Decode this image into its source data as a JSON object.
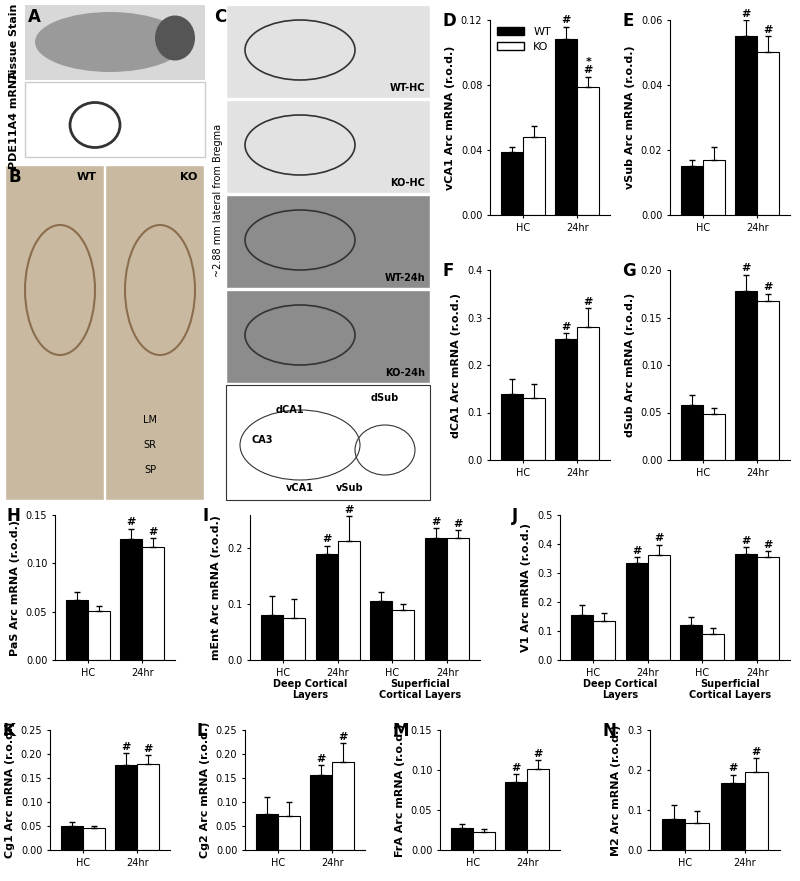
{
  "chart_data": [
    {
      "panel": "D",
      "type": "bar",
      "ylabel": "vCA1 Arc mRNA (r.o.d.)",
      "categories": [
        "HC",
        "24hr"
      ],
      "ylim": [
        0,
        0.12
      ],
      "yticks": [
        {
          "value": 0,
          "label": "0.00"
        },
        {
          "value": 0.04,
          "label": "0.04"
        },
        {
          "value": 0.08,
          "label": "0.08"
        },
        {
          "value": 0.12,
          "label": "0.12"
        }
      ],
      "legend": "upper left",
      "series": [
        {
          "name": "WT",
          "color": "#000000",
          "values": [
            0.039,
            0.108
          ],
          "errors": [
            0.003,
            0.008
          ],
          "marks": [
            null,
            "#"
          ]
        },
        {
          "name": "KO",
          "color": "#ffffff",
          "values": [
            0.048,
            0.079
          ],
          "errors": [
            0.007,
            0.006
          ],
          "marks": [
            null,
            "*\n#"
          ]
        }
      ]
    },
    {
      "panel": "E",
      "type": "bar",
      "ylabel": "vSub Arc mRNA (r.o.d.)",
      "categories": [
        "HC",
        "24hr"
      ],
      "ylim": [
        0,
        0.06
      ],
      "yticks": [
        {
          "value": 0,
          "label": "0.00"
        },
        {
          "value": 0.02,
          "label": "0.02"
        },
        {
          "value": 0.04,
          "label": "0.04"
        },
        {
          "value": 0.06,
          "label": "0.06"
        }
      ],
      "series": [
        {
          "name": "WT",
          "color": "#000000",
          "values": [
            0.015,
            0.055
          ],
          "errors": [
            0.002,
            0.005
          ],
          "marks": [
            null,
            "#"
          ]
        },
        {
          "name": "KO",
          "color": "#ffffff",
          "values": [
            0.017,
            0.05
          ],
          "errors": [
            0.004,
            0.005
          ],
          "marks": [
            null,
            "#"
          ]
        }
      ]
    },
    {
      "panel": "F",
      "type": "bar",
      "ylabel": "dCA1 Arc mRNA (r.o.d.)",
      "categories": [
        "HC",
        "24hr"
      ],
      "ylim": [
        0,
        0.4
      ],
      "yticks": [
        {
          "value": 0,
          "label": "0.0"
        },
        {
          "value": 0.1,
          "label": "0.1"
        },
        {
          "value": 0.2,
          "label": "0.2"
        },
        {
          "value": 0.3,
          "label": "0.3"
        },
        {
          "value": 0.4,
          "label": "0.4"
        }
      ],
      "series": [
        {
          "name": "WT",
          "color": "#000000",
          "values": [
            0.14,
            0.255
          ],
          "errors": [
            0.03,
            0.012
          ],
          "marks": [
            null,
            "#"
          ]
        },
        {
          "name": "KO",
          "color": "#ffffff",
          "values": [
            0.13,
            0.28
          ],
          "errors": [
            0.03,
            0.04
          ],
          "marks": [
            null,
            "#"
          ]
        }
      ]
    },
    {
      "panel": "G",
      "type": "bar",
      "ylabel": "dSub Arc mRNA (r.o.d.)",
      "categories": [
        "HC",
        "24hr"
      ],
      "ylim": [
        0,
        0.2
      ],
      "yticks": [
        {
          "value": 0,
          "label": "0.00"
        },
        {
          "value": 0.05,
          "label": "0.05"
        },
        {
          "value": 0.1,
          "label": "0.10"
        },
        {
          "value": 0.15,
          "label": "0.15"
        },
        {
          "value": 0.2,
          "label": "0.20"
        }
      ],
      "series": [
        {
          "name": "WT",
          "color": "#000000",
          "values": [
            0.058,
            0.178
          ],
          "errors": [
            0.01,
            0.017
          ],
          "marks": [
            null,
            "#"
          ]
        },
        {
          "name": "KO",
          "color": "#ffffff",
          "values": [
            0.048,
            0.167
          ],
          "errors": [
            0.007,
            0.008
          ],
          "marks": [
            null,
            "#"
          ]
        }
      ]
    },
    {
      "panel": "H",
      "type": "bar",
      "ylabel": "PaS Arc mRNA (r.o.d.)",
      "categories": [
        "HC",
        "24hr"
      ],
      "ylim": [
        0,
        0.15
      ],
      "yticks": [
        {
          "value": 0,
          "label": "0.00"
        },
        {
          "value": 0.05,
          "label": "0.05"
        },
        {
          "value": 0.1,
          "label": "0.10"
        },
        {
          "value": 0.15,
          "label": "0.15"
        }
      ],
      "series": [
        {
          "name": "WT",
          "color": "#000000",
          "values": [
            0.062,
            0.125
          ],
          "errors": [
            0.008,
            0.011
          ],
          "marks": [
            null,
            "#"
          ]
        },
        {
          "name": "KO",
          "color": "#ffffff",
          "values": [
            0.051,
            0.117
          ],
          "errors": [
            0.005,
            0.009
          ],
          "marks": [
            null,
            "#"
          ]
        }
      ]
    },
    {
      "panel": "I",
      "type": "bar",
      "ylabel": "mEnt Arc mRNA (r.o.d.)",
      "categories": [
        "HC",
        "24hr",
        "HC",
        "24hr"
      ],
      "group_labels": [
        "Deep Cortical Layers",
        "Superficial Cortical Layers"
      ],
      "ylim": [
        0,
        0.26
      ],
      "yticks": [
        {
          "value": 0,
          "label": "0.0"
        },
        {
          "value": 0.1,
          "label": "0.1"
        },
        {
          "value": 0.2,
          "label": "0.2"
        }
      ],
      "series": [
        {
          "name": "WT",
          "color": "#000000",
          "values": [
            0.08,
            0.19,
            0.105,
            0.218
          ],
          "errors": [
            0.035,
            0.015,
            0.017,
            0.018
          ],
          "marks": [
            null,
            "#",
            null,
            "#"
          ]
        },
        {
          "name": "KO",
          "color": "#ffffff",
          "values": [
            0.075,
            0.213,
            0.09,
            0.218
          ],
          "errors": [
            0.035,
            0.045,
            0.01,
            0.015
          ],
          "marks": [
            null,
            "#",
            null,
            "#"
          ]
        }
      ]
    },
    {
      "panel": "J",
      "type": "bar",
      "ylabel": "V1 Arc mRNA (r.o.d.)",
      "categories": [
        "HC",
        "24hr",
        "HC",
        "24hr"
      ],
      "group_labels": [
        "Deep Cortical Layers",
        "Superficial Cortical Layers"
      ],
      "ylim": [
        0,
        0.5
      ],
      "yticks": [
        {
          "value": 0,
          "label": "0.0"
        },
        {
          "value": 0.1,
          "label": "0.1"
        },
        {
          "value": 0.2,
          "label": "0.2"
        },
        {
          "value": 0.3,
          "label": "0.3"
        },
        {
          "value": 0.4,
          "label": "0.4"
        },
        {
          "value": 0.5,
          "label": "0.5"
        }
      ],
      "series": [
        {
          "name": "WT",
          "color": "#000000",
          "values": [
            0.155,
            0.335,
            0.12,
            0.365
          ],
          "errors": [
            0.035,
            0.02,
            0.03,
            0.025
          ],
          "marks": [
            null,
            "#",
            null,
            "#"
          ]
        },
        {
          "name": "KO",
          "color": "#ffffff",
          "values": [
            0.133,
            0.362,
            0.09,
            0.355
          ],
          "errors": [
            0.03,
            0.035,
            0.02,
            0.02
          ],
          "marks": [
            null,
            "#",
            null,
            "#"
          ]
        }
      ]
    },
    {
      "panel": "K",
      "type": "bar",
      "ylabel": "Cg1 Arc mRNA (r.o.d.)",
      "categories": [
        "HC",
        "24hr"
      ],
      "ylim": [
        0,
        0.25
      ],
      "yticks": [
        {
          "value": 0,
          "label": "0.00"
        },
        {
          "value": 0.05,
          "label": "0.05"
        },
        {
          "value": 0.1,
          "label": "0.10"
        },
        {
          "value": 0.15,
          "label": "0.15"
        },
        {
          "value": 0.2,
          "label": "0.20"
        },
        {
          "value": 0.25,
          "label": "0.25"
        }
      ],
      "series": [
        {
          "name": "WT",
          "color": "#000000",
          "values": [
            0.05,
            0.177
          ],
          "errors": [
            0.008,
            0.025
          ],
          "marks": [
            null,
            "#"
          ]
        },
        {
          "name": "KO",
          "color": "#ffffff",
          "values": [
            0.045,
            0.18
          ],
          "errors": [
            0.005,
            0.017
          ],
          "marks": [
            null,
            "#"
          ]
        }
      ]
    },
    {
      "panel": "L",
      "type": "bar",
      "ylabel": "Cg2 Arc mRNA (r.o.d.)",
      "categories": [
        "HC",
        "24hr"
      ],
      "ylim": [
        0,
        0.25
      ],
      "yticks": [
        {
          "value": 0,
          "label": "0.00"
        },
        {
          "value": 0.05,
          "label": "0.05"
        },
        {
          "value": 0.1,
          "label": "0.10"
        },
        {
          "value": 0.15,
          "label": "0.15"
        },
        {
          "value": 0.2,
          "label": "0.20"
        },
        {
          "value": 0.25,
          "label": "0.25"
        }
      ],
      "series": [
        {
          "name": "WT",
          "color": "#000000",
          "values": [
            0.075,
            0.157
          ],
          "errors": [
            0.035,
            0.02
          ],
          "marks": [
            null,
            "#"
          ]
        },
        {
          "name": "KO",
          "color": "#ffffff",
          "values": [
            0.07,
            0.183
          ],
          "errors": [
            0.03,
            0.04
          ],
          "marks": [
            null,
            "#"
          ]
        }
      ]
    },
    {
      "panel": "M",
      "type": "bar",
      "ylabel": "FrA Arc mRNA (r.o.d.)",
      "categories": [
        "HC",
        "24hr"
      ],
      "ylim": [
        0,
        0.15
      ],
      "yticks": [
        {
          "value": 0,
          "label": "0.00"
        },
        {
          "value": 0.05,
          "label": "0.05"
        },
        {
          "value": 0.1,
          "label": "0.10"
        },
        {
          "value": 0.15,
          "label": "0.15"
        }
      ],
      "series": [
        {
          "name": "WT",
          "color": "#000000",
          "values": [
            0.027,
            0.085
          ],
          "errors": [
            0.006,
            0.01
          ],
          "marks": [
            null,
            "#"
          ]
        },
        {
          "name": "KO",
          "color": "#ffffff",
          "values": [
            0.022,
            0.101
          ],
          "errors": [
            0.004,
            0.011
          ],
          "marks": [
            null,
            "#"
          ]
        }
      ]
    },
    {
      "panel": "N",
      "type": "bar",
      "ylabel": "M2 Arc mRNA (r.o.d.)",
      "categories": [
        "HC",
        "24hr"
      ],
      "ylim": [
        0,
        0.3
      ],
      "yticks": [
        {
          "value": 0,
          "label": "0.0"
        },
        {
          "value": 0.1,
          "label": "0.1"
        },
        {
          "value": 0.2,
          "label": "0.2"
        },
        {
          "value": 0.3,
          "label": "0.3"
        }
      ],
      "series": [
        {
          "name": "WT",
          "color": "#000000",
          "values": [
            0.077,
            0.168
          ],
          "errors": [
            0.035,
            0.02
          ],
          "marks": [
            null,
            "#"
          ]
        },
        {
          "name": "KO",
          "color": "#ffffff",
          "values": [
            0.067,
            0.195
          ],
          "errors": [
            0.03,
            0.035
          ],
          "marks": [
            null,
            "#"
          ]
        }
      ]
    }
  ],
  "image_panels": [
    {
      "panel": "A",
      "rows": [
        "Tissue Stain",
        "PDE11A4 mRNA"
      ]
    },
    {
      "panel": "B",
      "images": [
        "WT",
        "KO"
      ],
      "layers": [
        "LM",
        "SR",
        "SP"
      ]
    },
    {
      "panel": "C",
      "side_label": "~2.88 mm lateral from Bregma",
      "images": [
        "WT-HC",
        "KO-HC",
        "WT-24h",
        "KO-24h"
      ],
      "atlas_labels": [
        "dCA1",
        "dSub",
        "CA3",
        "vCA1",
        "vSub"
      ]
    }
  ]
}
